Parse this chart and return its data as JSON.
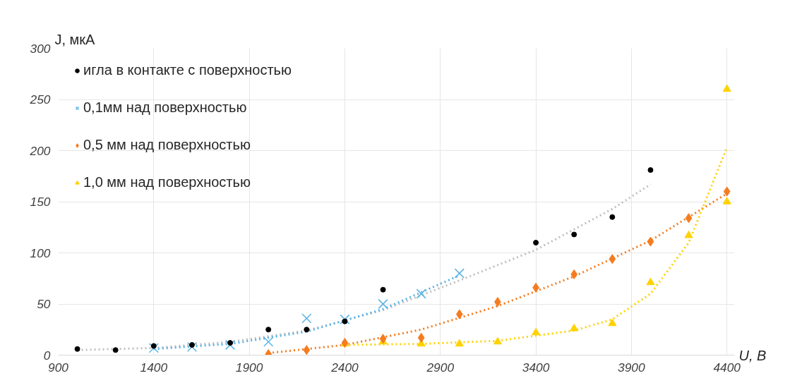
{
  "chart_data": {
    "type": "scatter",
    "xlabel": "U, В",
    "ylabel": "J,  мкА",
    "xlim": [
      900,
      4440
    ],
    "ylim": [
      0,
      300
    ],
    "xticks": [
      900,
      1400,
      1900,
      2400,
      2900,
      3400,
      3900,
      4400
    ],
    "yticks": [
      0,
      50,
      100,
      150,
      200,
      250,
      300
    ],
    "grid": true,
    "legend": "top left",
    "series": [
      {
        "name": "игла в контакте с поверхностью",
        "color": "#000000",
        "marker": "circle",
        "x": [
          1000,
          1200,
          1400,
          1600,
          1800,
          2000,
          2200,
          2400,
          2600,
          3400,
          3600,
          3800,
          4000
        ],
        "values": [
          6,
          5,
          9,
          10,
          12,
          25,
          25,
          33,
          64,
          110,
          118,
          135,
          181
        ]
      },
      {
        "name": "0,1мм над поверхностью",
        "color": "#5ab4e5",
        "marker": "cross",
        "x": [
          1400,
          1600,
          1800,
          2000,
          2200,
          2400,
          2600,
          2800,
          3000
        ],
        "values": [
          7,
          8,
          10,
          13,
          36,
          35,
          50,
          60,
          80
        ]
      },
      {
        "name": "0,5 мм над поверхностью",
        "color": "#f47c20",
        "marker": "diamond",
        "x": [
          2000,
          2200,
          2400,
          2600,
          2800,
          3000,
          3200,
          3400,
          3600,
          3800,
          4000,
          4200,
          4400
        ],
        "values": [
          1,
          5,
          12,
          16,
          17,
          40,
          52,
          66,
          79,
          94,
          111,
          134,
          160
        ]
      },
      {
        "name": "1,0 мм над поверхностью",
        "color": "#ffd200",
        "marker": "triangle",
        "x": [
          2400,
          2600,
          2800,
          3000,
          3200,
          3400,
          3600,
          3800,
          4000,
          4200,
          4400,
          4400
        ],
        "values": [
          11,
          13,
          11,
          11,
          13,
          22,
          26,
          31,
          71,
          117,
          150,
          260
        ]
      },
      {
        "type": "line",
        "line_style": "dotted",
        "color": "#bfbfbf",
        "x": [
          1000,
          1400,
          1800,
          2200,
          2600,
          3000,
          3400,
          3800,
          4000
        ],
        "values": [
          5,
          7,
          13,
          24,
          44,
          73,
          103,
          143,
          167
        ]
      },
      {
        "type": "line",
        "line_style": "dotted",
        "color": "#5ab4e5",
        "x": [
          1400,
          1800,
          2200,
          2600,
          3000
        ],
        "values": [
          6,
          11,
          23,
          45,
          78
        ]
      },
      {
        "type": "line",
        "line_style": "dotted",
        "color": "#f47c20",
        "x": [
          2000,
          2400,
          2800,
          3200,
          3600,
          4000,
          4400
        ],
        "values": [
          2,
          10,
          25,
          48,
          77,
          112,
          158
        ]
      },
      {
        "type": "line",
        "line_style": "dotted",
        "color": "#ffd200",
        "x": [
          2400,
          2800,
          3200,
          3600,
          3800,
          4000,
          4200,
          4400
        ],
        "values": [
          10,
          11,
          14,
          24,
          35,
          60,
          110,
          203
        ]
      }
    ]
  }
}
